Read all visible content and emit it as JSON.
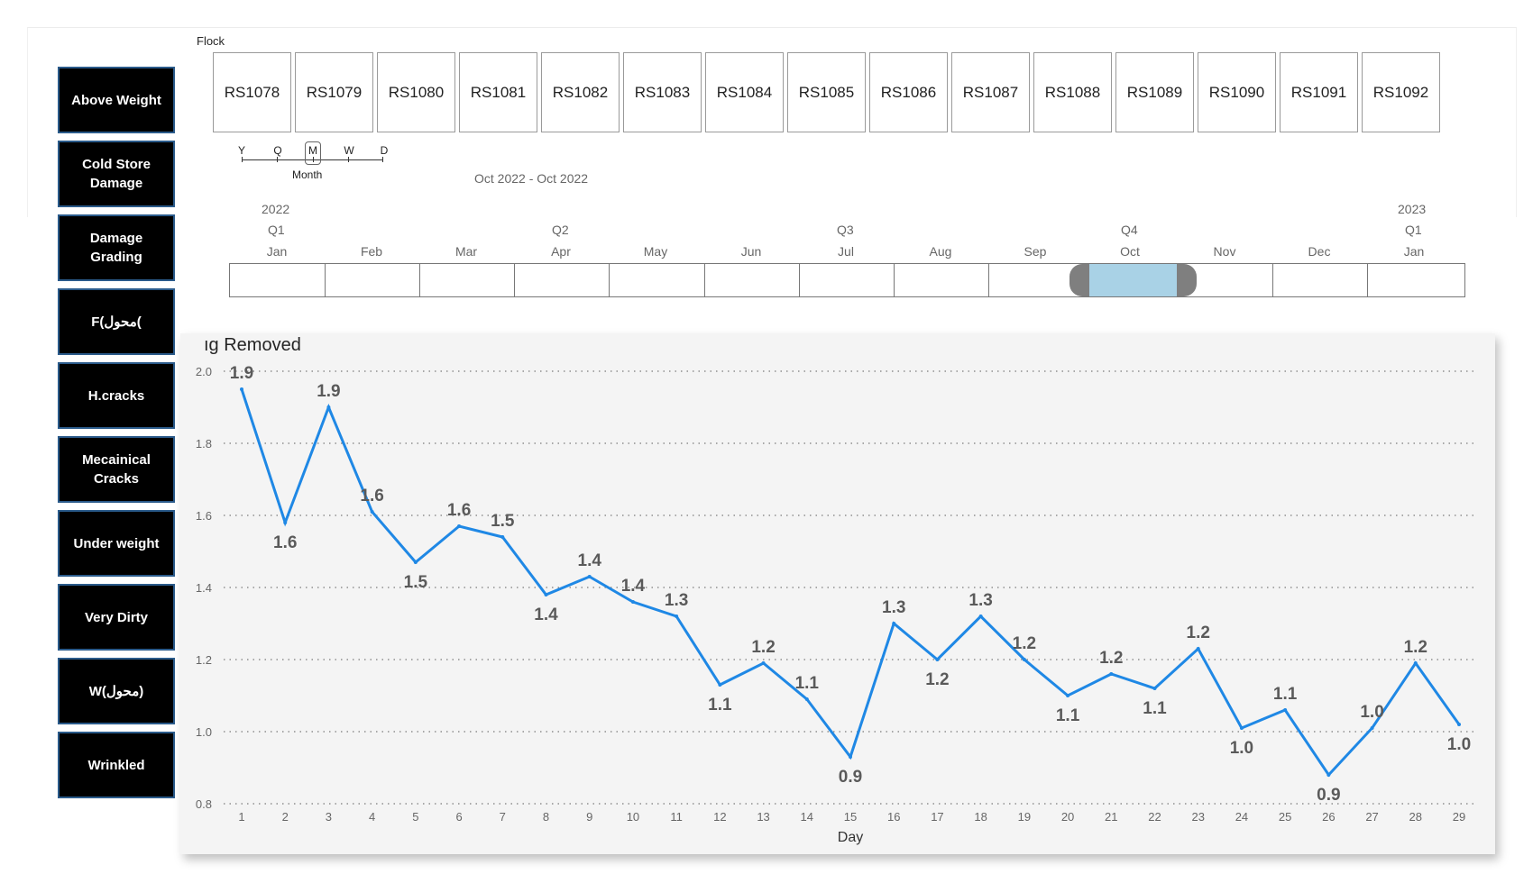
{
  "sidebar": {
    "items": [
      {
        "label": "Above Weight"
      },
      {
        "label": "Cold Store Damage"
      },
      {
        "label": "Damage Grading"
      },
      {
        "label": "F(محول("
      },
      {
        "label": "H.cracks"
      },
      {
        "label": "Mecainical Cracks"
      },
      {
        "label": "Under weight"
      },
      {
        "label": "Very Dirty"
      },
      {
        "label": "W(محول)"
      },
      {
        "label": "Wrinkled"
      }
    ]
  },
  "flock": {
    "label": "Flock",
    "items": [
      "RS1078",
      "RS1079",
      "RS1080",
      "RS1081",
      "RS1082",
      "RS1083",
      "RS1084",
      "RS1085",
      "RS1086",
      "RS1087",
      "RS1088",
      "RS1089",
      "RS1090",
      "RS1091",
      "RS1092"
    ]
  },
  "timeline": {
    "granularity": {
      "levels": [
        "Y",
        "Q",
        "M",
        "W",
        "D"
      ],
      "selected": "M",
      "selected_name": "Month"
    },
    "range_text": "Oct 2022 - Oct 2022",
    "years": [
      "2022",
      "2023"
    ],
    "quarters": [
      "Q1",
      "Q2",
      "Q3",
      "Q4",
      "Q1"
    ],
    "months": [
      "Jan",
      "Feb",
      "Mar",
      "Apr",
      "May",
      "Jun",
      "Jul",
      "Aug",
      "Sep",
      "Oct",
      "Nov",
      "Dec",
      "Jan"
    ],
    "selected_month": "Oct"
  },
  "colors": {
    "line": "#1f88e5",
    "selection": "#a9d2e6",
    "handle": "#7f7f7f"
  },
  "chart_data": {
    "type": "line",
    "title": "ıg Removed",
    "xlabel": "Day",
    "ylabel": "",
    "ylim": [
      0.8,
      2.0
    ],
    "yticks": [
      "2.0",
      "1.8",
      "1.6",
      "1.4",
      "1.2",
      "1.0",
      "0.8"
    ],
    "x": [
      1,
      2,
      3,
      4,
      5,
      6,
      7,
      8,
      9,
      10,
      11,
      12,
      13,
      14,
      15,
      16,
      17,
      18,
      19,
      20,
      21,
      22,
      23,
      24,
      25,
      26,
      27,
      28,
      29
    ],
    "values": [
      1.95,
      1.58,
      1.9,
      1.61,
      1.47,
      1.57,
      1.54,
      1.38,
      1.43,
      1.36,
      1.32,
      1.13,
      1.19,
      1.09,
      0.93,
      1.3,
      1.2,
      1.32,
      1.2,
      1.1,
      1.16,
      1.12,
      1.23,
      1.01,
      1.06,
      0.88,
      1.01,
      1.19,
      1.02
    ],
    "data_labels": [
      "1.9",
      "1.6",
      "1.9",
      "1.6",
      "1.5",
      "1.6",
      "1.5",
      "1.4",
      "1.4",
      "1.4",
      "1.3",
      "1.1",
      "1.2",
      "1.1",
      "0.9",
      "1.3",
      "1.2",
      "1.3",
      "1.2",
      "1.1",
      "1.2",
      "1.1",
      "1.2",
      "1.0",
      "1.1",
      "0.9",
      "1.0",
      "1.2",
      "1.0"
    ],
    "gridlines": true
  }
}
